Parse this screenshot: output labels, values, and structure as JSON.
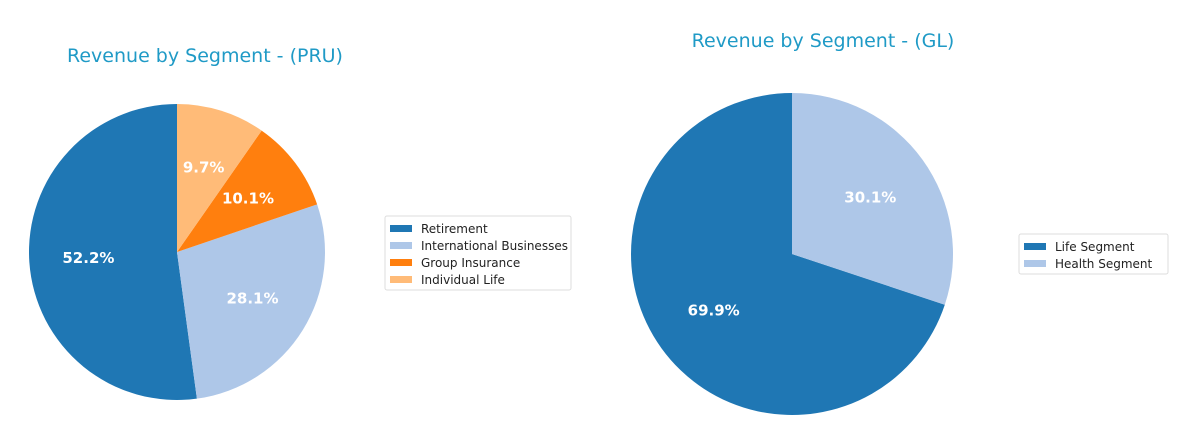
{
  "title_color": "#1f9ac6",
  "chart_data": [
    {
      "type": "pie",
      "title": "Revenue by Segment - (PRU)",
      "categories": [
        "Retirement",
        "International Businesses",
        "Group Insurance",
        "Individual Life"
      ],
      "values": [
        52.2,
        28.1,
        10.1,
        9.7
      ],
      "labels": [
        "52.2%",
        "28.1%",
        "10.1%",
        "9.7%"
      ],
      "colors": [
        "#1f77b4",
        "#aec7e8",
        "#ff7f0e",
        "#ffbb78"
      ],
      "start_angle": 90,
      "direction": "counterclockwise",
      "legend": "right"
    },
    {
      "type": "pie",
      "title": "Revenue by Segment - (GL)",
      "categories": [
        "Life Segment",
        "Health Segment"
      ],
      "values": [
        69.9,
        30.1
      ],
      "labels": [
        "69.9%",
        "30.1%"
      ],
      "colors": [
        "#1f77b4",
        "#aec7e8"
      ],
      "start_angle": 90,
      "direction": "counterclockwise",
      "legend": "right"
    }
  ]
}
